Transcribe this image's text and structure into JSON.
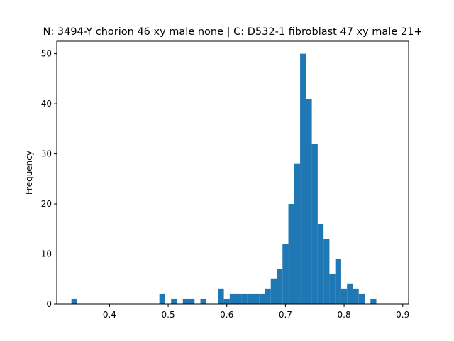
{
  "chart_data": {
    "type": "bar",
    "title": "N: 3494-Y chorion 46 xy male none | C: D532-1 fibroblast 47 xy male 21+",
    "xlabel": "",
    "ylabel": "Frequency",
    "xlim": [
      0.31,
      0.91
    ],
    "ylim": [
      0,
      52.5
    ],
    "x_ticks": [
      0.4,
      0.5,
      0.6,
      0.7,
      0.8,
      0.9
    ],
    "y_ticks": [
      0,
      10,
      20,
      30,
      40,
      50
    ],
    "grid": false,
    "bar_color": "#1f77b4",
    "bin_start": 0.335,
    "bin_width": 0.01,
    "values": [
      1,
      0,
      0,
      0,
      0,
      0,
      0,
      0,
      0,
      0,
      0,
      0,
      0,
      0,
      0,
      2,
      0,
      1,
      0,
      1,
      1,
      0,
      1,
      0,
      0,
      3,
      1,
      2,
      2,
      2,
      2,
      2,
      2,
      3,
      5,
      7,
      12,
      20,
      28,
      50,
      41,
      32,
      16,
      13,
      6,
      9,
      3,
      4,
      3,
      2,
      0,
      1
    ]
  }
}
